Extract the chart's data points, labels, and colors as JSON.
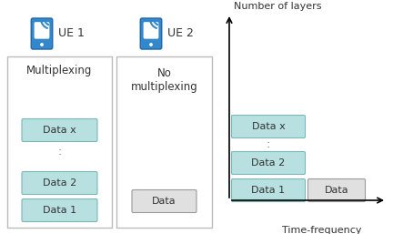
{
  "bg_color": "#ffffff",
  "box1_label": "Multiplexing",
  "box2_label": "No\nmultiplexing",
  "ue1_label": "UE 1",
  "ue2_label": "UE 2",
  "data_box_color": "#b8e0e0",
  "data_box_edge": "#7ab8b8",
  "single_box_color": "#e0e0e0",
  "single_box_edge": "#999999",
  "outer_box_edge": "#aaaaaa",
  "phone_color": "#3388cc",
  "phone_edge": "#2266aa",
  "axis_label_y": "Number of layers",
  "axis_label_x": "Time-frequency\nresources",
  "text_color": "#333333",
  "figw": 4.32,
  "figh": 2.57,
  "dpi": 100
}
